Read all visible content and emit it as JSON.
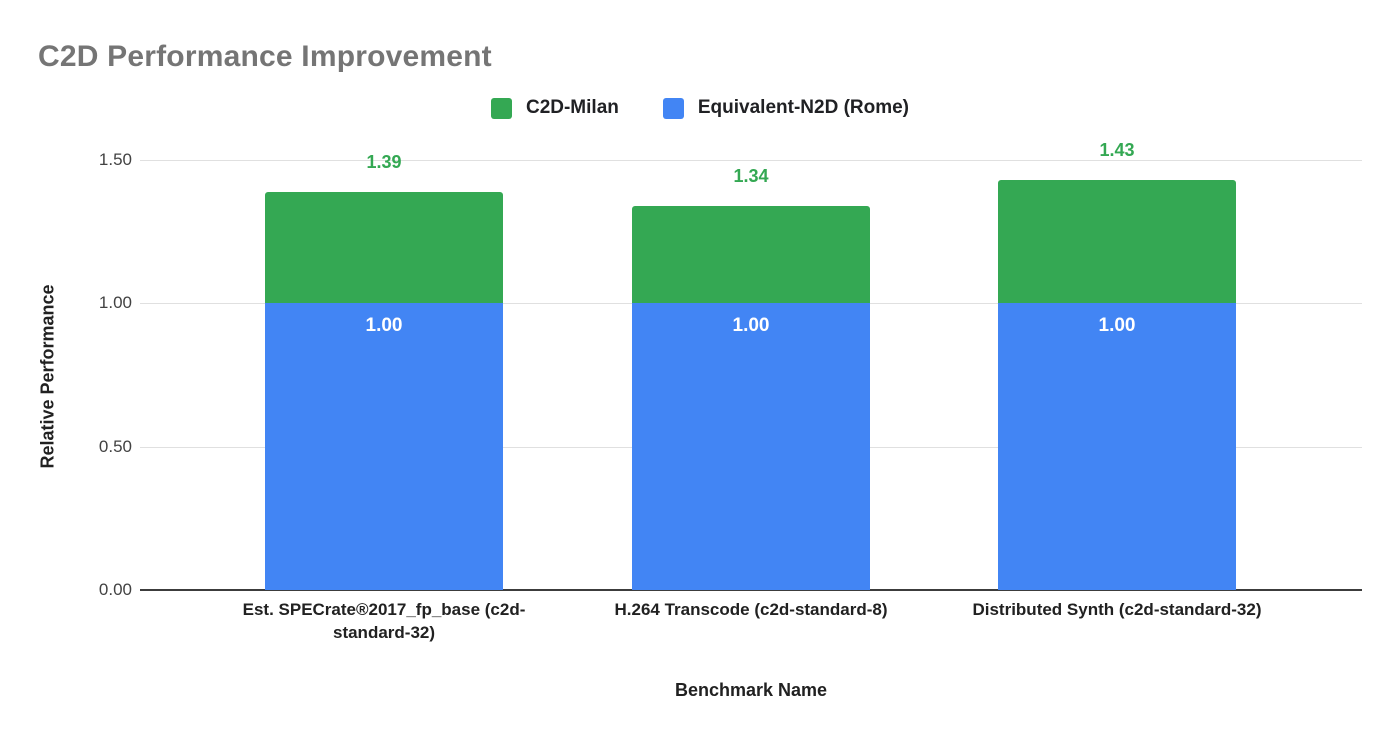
{
  "chart_data": {
    "type": "bar",
    "stacked": true,
    "title": "C2D Performance Improvement",
    "xlabel": "Benchmark Name",
    "ylabel": "Relative Performance",
    "categories": [
      "Est. SPECrate®2017_fp_base (c2d-standard-32)",
      "H.264 Transcode (c2d-standard-8)",
      "Distributed Synth  (c2d-standard-32)"
    ],
    "series": [
      {
        "name": "C2D-Milan",
        "color": "#34a853",
        "values": [
          1.39,
          1.34,
          1.43
        ],
        "labels": [
          "1.39",
          "1.34",
          "1.43"
        ],
        "label_color": "#34a853",
        "render": "segment drawn from baseline series top (1.00) up to value"
      },
      {
        "name": "Equivalent-N2D (Rome)",
        "color": "#4285f4",
        "values": [
          1.0,
          1.0,
          1.0
        ],
        "labels": [
          "1.00",
          "1.00",
          "1.00"
        ],
        "label_color": "#ffffff"
      }
    ],
    "ylim": [
      0,
      1.5
    ],
    "y_ticks": [
      "0.00",
      "0.50",
      "1.00",
      "1.50"
    ],
    "grid": true,
    "legend_position": "top",
    "colors": {
      "title_text": "#757575",
      "axis_labels": "#212121",
      "tick_labels": "#424242",
      "gridline": "#e0e0e0",
      "axis_line": "#3c3c3c",
      "background": "#ffffff"
    }
  }
}
